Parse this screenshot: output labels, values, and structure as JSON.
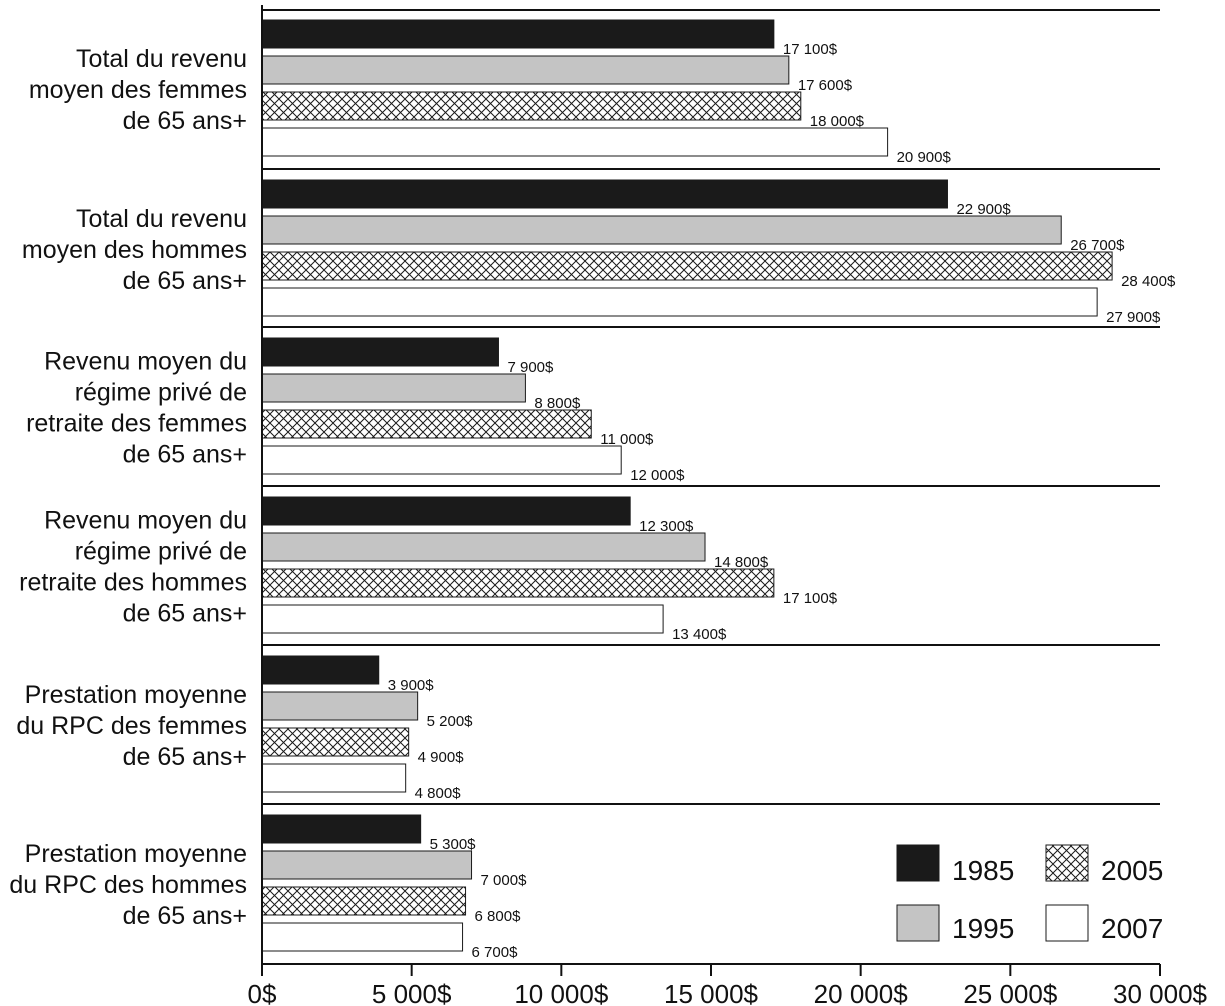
{
  "chart_data": {
    "type": "bar",
    "orientation": "horizontal",
    "categories": [
      [
        "Total du revenu",
        "moyen des femmes",
        "de 65 ans+"
      ],
      [
        "Total du revenu",
        "moyen des hommes",
        "de 65 ans+"
      ],
      [
        "Revenu moyen du",
        "régime privé de",
        "retraite des femmes",
        "de 65 ans+"
      ],
      [
        "Revenu moyen du",
        "régime privé de",
        "retraite des hommes",
        "de 65 ans+"
      ],
      [
        "Prestation moyenne",
        "du RPC des femmes",
        "de 65 ans+"
      ],
      [
        "Prestation moyenne",
        "du RPC des hommes",
        "de 65 ans+"
      ]
    ],
    "series": [
      {
        "name": "1985",
        "pattern": "solid-black",
        "values": [
          17100,
          22900,
          7900,
          12300,
          3900,
          5300
        ],
        "labels": [
          "17 100$",
          "22 900$",
          "7  900$",
          "12 300$",
          "3 900$",
          "5 300$"
        ]
      },
      {
        "name": "1995",
        "pattern": "solid-gray",
        "values": [
          17600,
          26700,
          8800,
          14800,
          5200,
          7000
        ],
        "labels": [
          "17 600$",
          "26 700$",
          "8 800$",
          "14 800$",
          "5 200$",
          "7 000$"
        ]
      },
      {
        "name": "2005",
        "pattern": "crosshatch",
        "values": [
          18000,
          28400,
          11000,
          17100,
          4900,
          6800
        ],
        "labels": [
          "18 000$",
          "28 400$",
          "11 000$",
          "17 100$",
          "4 900$",
          "6 800$"
        ]
      },
      {
        "name": "2007",
        "pattern": "white",
        "values": [
          20900,
          27900,
          12000,
          13400,
          4800,
          6700
        ],
        "labels": [
          "20 900$",
          "27 900$",
          "12 000$",
          "13 400$",
          "4 800$",
          "6 700$"
        ]
      }
    ],
    "xlim": [
      0,
      30000
    ],
    "xticks": [
      0,
      5000,
      10000,
      15000,
      20000,
      25000,
      30000
    ],
    "xtick_labels": [
      "0$",
      "5 000$",
      "10 000$",
      "15 000$",
      "20 000$",
      "25 000$",
      "30 000$"
    ],
    "legend_position": "bottom-right",
    "colors": {
      "c1985": "#1a1a1a",
      "c1995": "#c4c4c4",
      "c2005": "#ffffff",
      "c2007": "#ffffff",
      "hatch": "#1a1a1a"
    }
  }
}
